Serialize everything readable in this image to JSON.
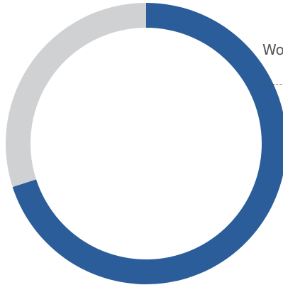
{
  "chart_data": {
    "type": "pie",
    "variant": "donut",
    "slices": [
      {
        "value": 70,
        "color": "#2A5D99"
      },
      {
        "value": 30,
        "color": "#D0D1D3"
      }
    ],
    "annotation": "Wo",
    "start": "top",
    "direction": "clockwise"
  }
}
